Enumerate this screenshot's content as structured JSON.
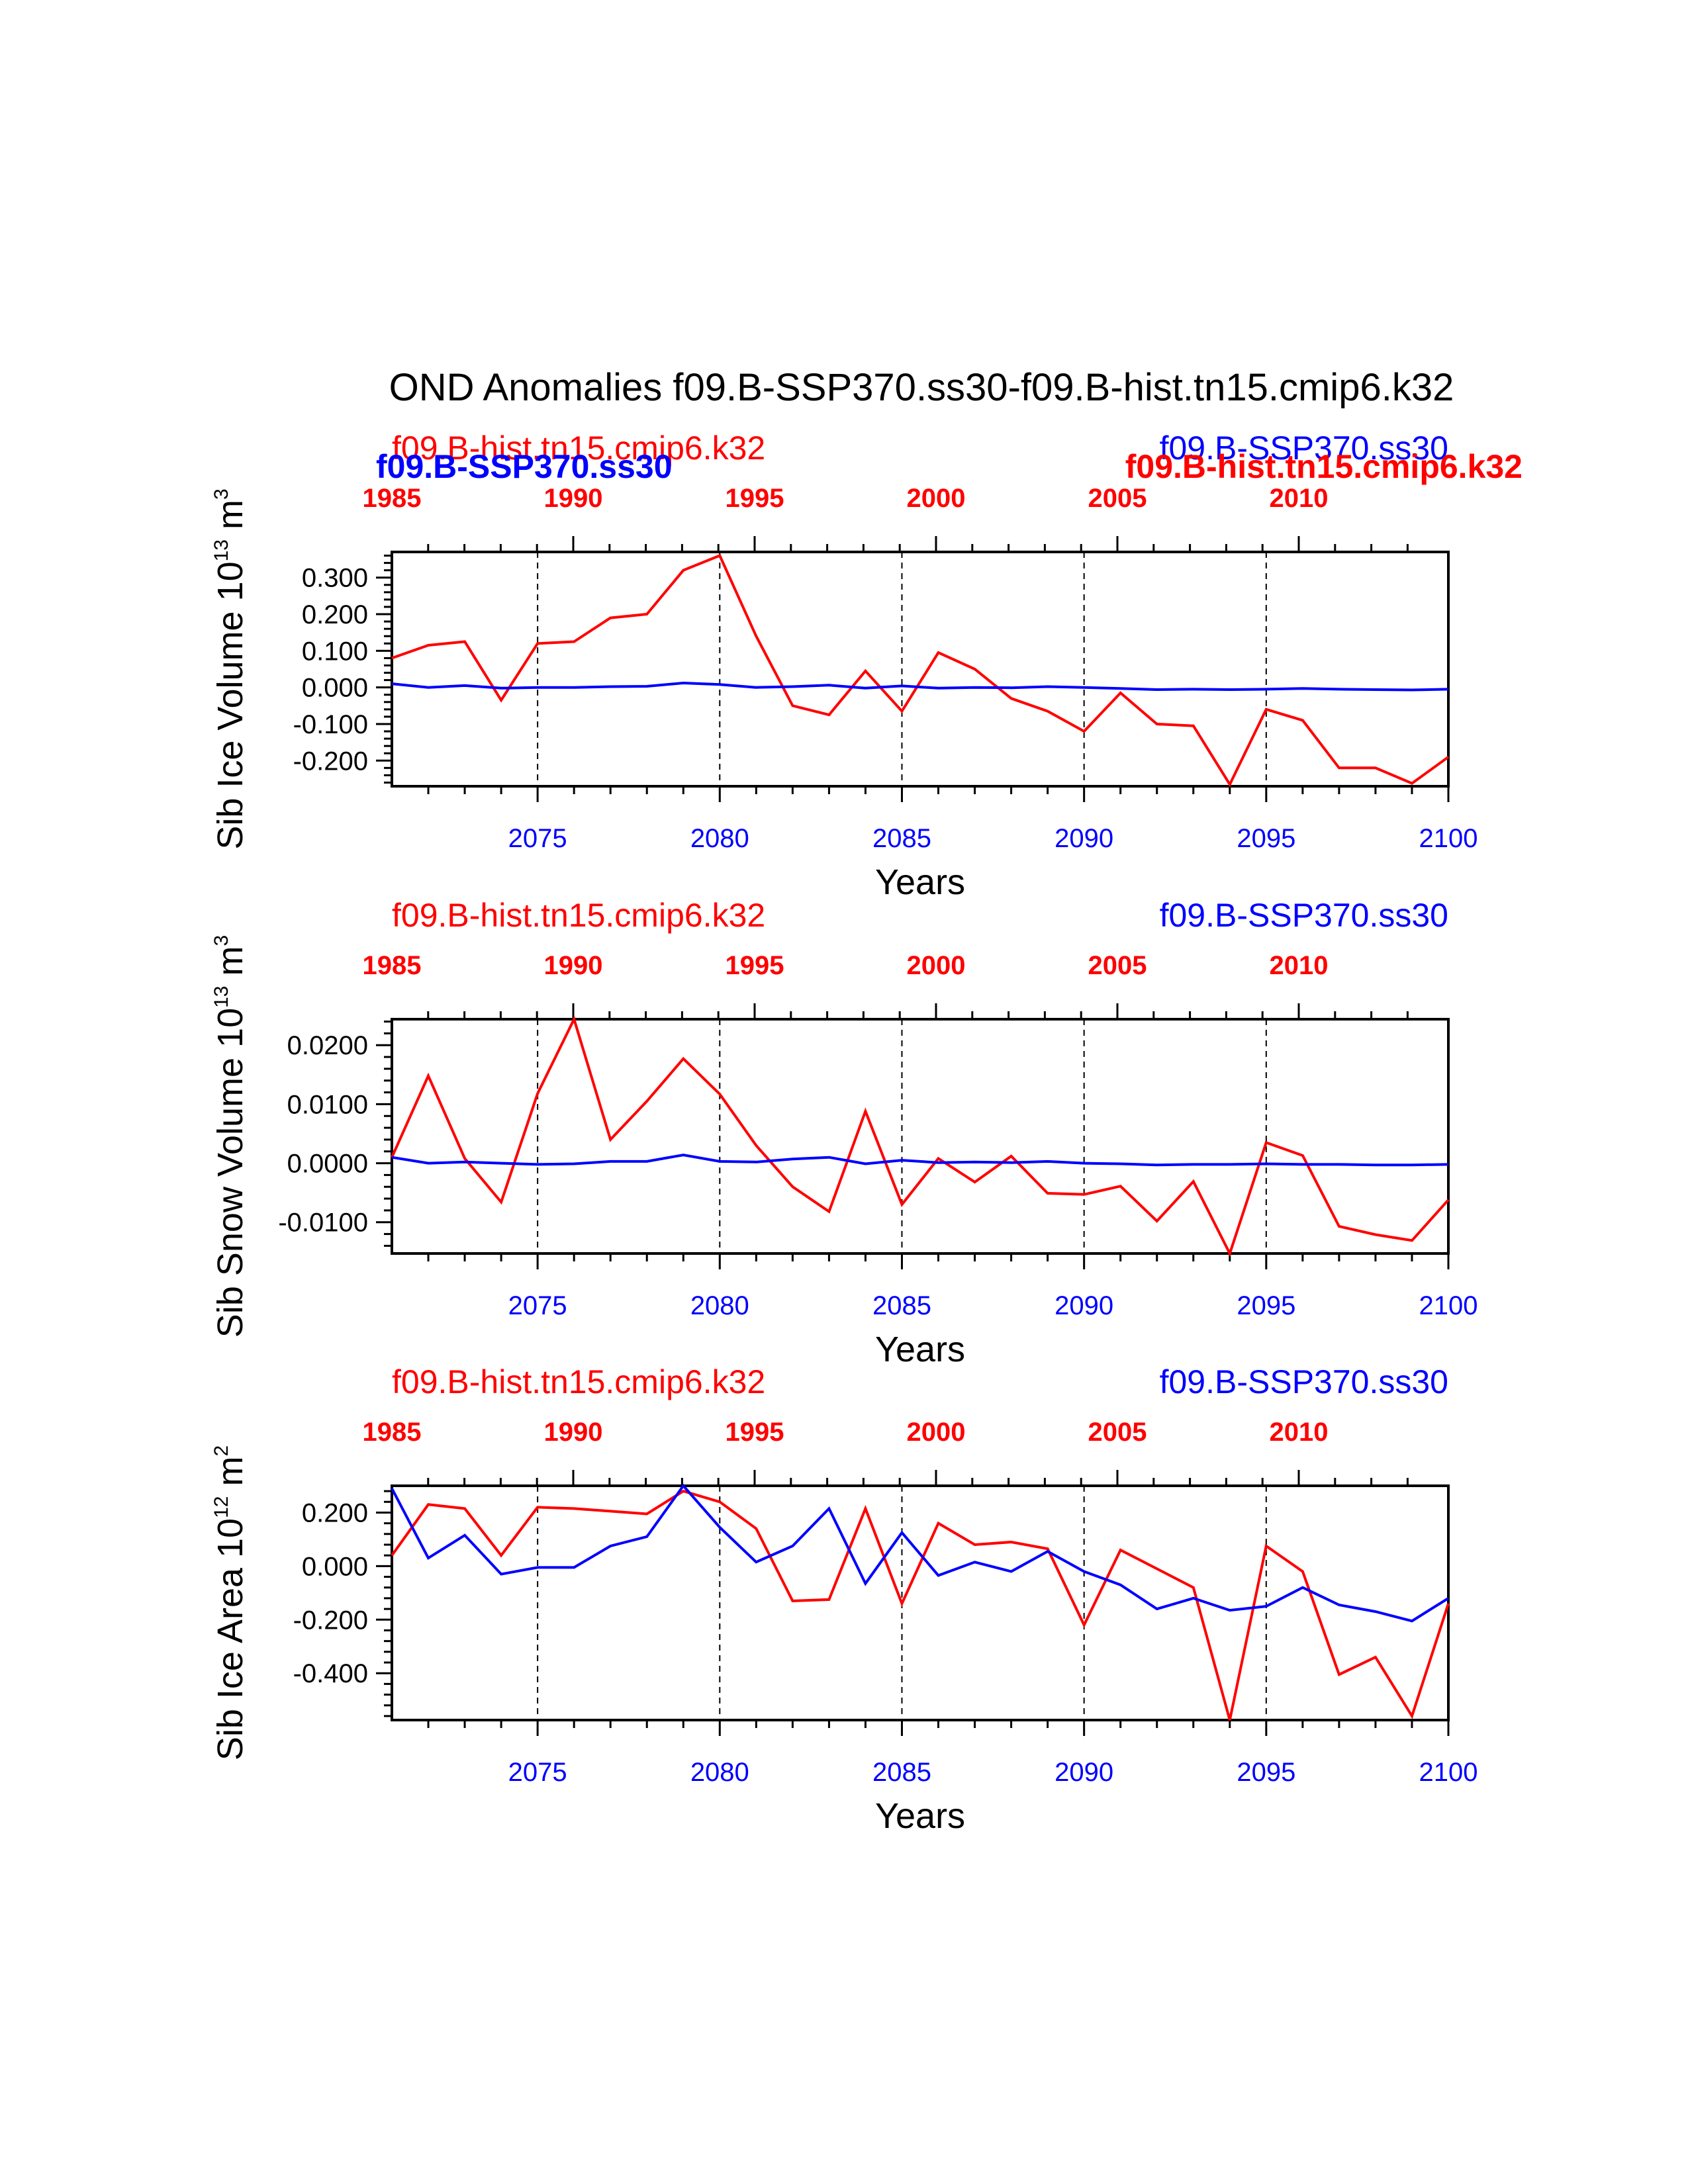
{
  "figure_title": "OND Anomalies f09.B-SSP370.ss30-f09.B-hist.tn15.cmip6.k32",
  "colors": {
    "hist": "#ff0000",
    "ssp": "#0000ff",
    "axis": "#000000"
  },
  "chart_data": [
    {
      "type": "line",
      "ylabel": "Sib Ice Volume 10",
      "ylabel_exp": "13",
      "ylabel_unit": " m",
      "ylabel_unit_exp": "3",
      "xlabel": "Years",
      "top_label_left": "f09.B-hist.tn15.cmip6.k32",
      "top_label_right": "f09.B-SSP370.ss30",
      "overlap_label_left": "f09.B-SSP370.ss30",
      "overlap_label_right": "f09.B-hist.tn15.cmip6.k32",
      "xlim": [
        2071,
        2100
      ],
      "ylim": [
        -0.27,
        0.37
      ],
      "x_ticks": [
        2075,
        2080,
        2085,
        2090,
        2095,
        2100
      ],
      "top_ticks": [
        1985,
        1990,
        1995,
        2000,
        2005,
        2010
      ],
      "y_ticks": [
        -0.2,
        -0.1,
        0.0,
        0.1,
        0.2,
        0.3
      ],
      "y_tick_labels": [
        "-0.200",
        "-0.100",
        "0.000",
        "0.100",
        "0.200",
        "0.300"
      ],
      "y_minor": 0.02,
      "grid_x": [
        2075,
        2080,
        2085,
        2090,
        2095
      ],
      "series": [
        {
          "name": "f09.B-hist.tn15.cmip6.k32",
          "color": "#ff0000",
          "x": [
            2071,
            2072,
            2073,
            2074,
            2075,
            2076,
            2077,
            2078,
            2079,
            2080,
            2081,
            2082,
            2083,
            2084,
            2085,
            2086,
            2087,
            2088,
            2089,
            2090,
            2091,
            2092,
            2093,
            2094,
            2095,
            2096,
            2097,
            2098,
            2099,
            2100
          ],
          "values": [
            0.08,
            0.115,
            0.125,
            -0.035,
            0.12,
            0.125,
            0.19,
            0.2,
            0.32,
            0.36,
            0.14,
            -0.05,
            -0.075,
            0.045,
            -0.065,
            0.095,
            0.05,
            -0.03,
            -0.065,
            -0.12,
            -0.015,
            -0.1,
            -0.105,
            -0.265,
            -0.06,
            -0.09,
            -0.22,
            -0.22,
            -0.262,
            -0.19
          ]
        },
        {
          "name": "f09.B-SSP370.ss30",
          "color": "#0000ff",
          "x": [
            2071,
            2072,
            2073,
            2074,
            2075,
            2076,
            2077,
            2078,
            2079,
            2080,
            2081,
            2082,
            2083,
            2084,
            2085,
            2086,
            2087,
            2088,
            2089,
            2090,
            2091,
            2092,
            2093,
            2094,
            2095,
            2096,
            2097,
            2098,
            2099,
            2100
          ],
          "values": [
            0.01,
            0.0,
            0.005,
            -0.002,
            0.0,
            0.0,
            0.002,
            0.003,
            0.012,
            0.008,
            0.0,
            0.002,
            0.006,
            -0.002,
            0.004,
            -0.002,
            0.0,
            -0.001,
            0.002,
            0.0,
            -0.003,
            -0.006,
            -0.005,
            -0.006,
            -0.005,
            -0.003,
            -0.005,
            -0.006,
            -0.007,
            -0.005
          ]
        }
      ]
    },
    {
      "type": "line",
      "ylabel": "Sib Snow Volume 10",
      "ylabel_exp": "13",
      "ylabel_unit": " m",
      "ylabel_unit_exp": "3",
      "xlabel": "Years",
      "top_label_left": "f09.B-hist.tn15.cmip6.k32",
      "top_label_right": "f09.B-SSP370.ss30",
      "xlim": [
        2071,
        2100
      ],
      "ylim": [
        -0.0153,
        0.0244
      ],
      "x_ticks": [
        2075,
        2080,
        2085,
        2090,
        2095,
        2100
      ],
      "top_ticks": [
        1985,
        1990,
        1995,
        2000,
        2005,
        2010
      ],
      "y_ticks": [
        -0.01,
        0.0,
        0.01,
        0.02
      ],
      "y_tick_labels": [
        "-0.0100",
        "0.0000",
        "0.0100",
        "0.0200"
      ],
      "y_minor": 0.002,
      "grid_x": [
        2075,
        2080,
        2085,
        2090,
        2095
      ],
      "series": [
        {
          "name": "f09.B-hist.tn15.cmip6.k32",
          "color": "#ff0000",
          "x": [
            2071,
            2072,
            2073,
            2074,
            2075,
            2076,
            2077,
            2078,
            2079,
            2080,
            2081,
            2082,
            2083,
            2084,
            2085,
            2086,
            2087,
            2088,
            2089,
            2090,
            2091,
            2092,
            2093,
            2094,
            2095,
            2096,
            2097,
            2098,
            2099,
            2100
          ],
          "values": [
            0.001,
            0.0148,
            0.0008,
            -0.0066,
            0.0118,
            0.0244,
            0.004,
            0.0105,
            0.0177,
            0.0117,
            0.003,
            -0.004,
            -0.0082,
            0.0088,
            -0.007,
            0.0008,
            -0.0032,
            0.0012,
            -0.0051,
            -0.0053,
            -0.0039,
            -0.0098,
            -0.0031,
            -0.0153,
            0.0035,
            0.0013,
            -0.0107,
            -0.0121,
            -0.0131,
            -0.0062
          ]
        },
        {
          "name": "f09.B-SSP370.ss30",
          "color": "#0000ff",
          "x": [
            2071,
            2072,
            2073,
            2074,
            2075,
            2076,
            2077,
            2078,
            2079,
            2080,
            2081,
            2082,
            2083,
            2084,
            2085,
            2086,
            2087,
            2088,
            2089,
            2090,
            2091,
            2092,
            2093,
            2094,
            2095,
            2096,
            2097,
            2098,
            2099,
            2100
          ],
          "values": [
            0.001,
            0.0,
            0.0002,
            0.0,
            -0.0002,
            -0.0001,
            0.0003,
            0.0003,
            0.0014,
            0.0003,
            0.0002,
            0.0007,
            0.001,
            -0.0001,
            0.0005,
            0.0001,
            0.0002,
            0.0001,
            0.0003,
            0.0,
            -0.0001,
            -0.0003,
            -0.0002,
            -0.0002,
            -0.0001,
            -0.0002,
            -0.0002,
            -0.0003,
            -0.0003,
            -0.0002
          ]
        }
      ]
    },
    {
      "type": "line",
      "ylabel": "Sib Ice Area 10",
      "ylabel_exp": "12",
      "ylabel_unit": " m",
      "ylabel_unit_exp": "2",
      "xlabel": "Years",
      "top_label_left": "f09.B-hist.tn15.cmip6.k32",
      "top_label_right": "f09.B-SSP370.ss30",
      "xlim": [
        2071,
        2100
      ],
      "ylim": [
        -0.575,
        0.3
      ],
      "x_ticks": [
        2075,
        2080,
        2085,
        2090,
        2095,
        2100
      ],
      "top_ticks": [
        1985,
        1990,
        1995,
        2000,
        2005,
        2010
      ],
      "y_ticks": [
        -0.4,
        -0.2,
        0.0,
        0.2
      ],
      "y_tick_labels": [
        "-0.400",
        "-0.200",
        "0.000",
        "0.200"
      ],
      "y_minor": 0.04,
      "grid_x": [
        2075,
        2080,
        2085,
        2090,
        2095
      ],
      "series": [
        {
          "name": "f09.B-hist.tn15.cmip6.k32",
          "color": "#ff0000",
          "x": [
            2071,
            2072,
            2073,
            2074,
            2075,
            2076,
            2077,
            2078,
            2079,
            2080,
            2081,
            2082,
            2083,
            2084,
            2085,
            2086,
            2087,
            2088,
            2089,
            2090,
            2091,
            2092,
            2093,
            2094,
            2095,
            2096,
            2097,
            2098,
            2099,
            2100
          ],
          "values": [
            0.04,
            0.23,
            0.215,
            0.04,
            0.22,
            0.215,
            0.205,
            0.195,
            0.28,
            0.24,
            0.14,
            -0.13,
            -0.125,
            0.215,
            -0.14,
            0.16,
            0.08,
            0.09,
            0.065,
            -0.22,
            0.06,
            -0.01,
            -0.08,
            -0.575,
            0.075,
            -0.02,
            -0.405,
            -0.34,
            -0.56,
            -0.14
          ]
        },
        {
          "name": "f09.B-SSP370.ss30",
          "color": "#0000ff",
          "x": [
            2071,
            2072,
            2073,
            2074,
            2075,
            2076,
            2077,
            2078,
            2079,
            2080,
            2081,
            2082,
            2083,
            2084,
            2085,
            2086,
            2087,
            2088,
            2089,
            2090,
            2091,
            2092,
            2093,
            2094,
            2095,
            2096,
            2097,
            2098,
            2099,
            2100
          ],
          "values": [
            0.29,
            0.03,
            0.115,
            -0.03,
            -0.005,
            -0.005,
            0.075,
            0.11,
            0.3,
            0.145,
            0.015,
            0.075,
            0.215,
            -0.065,
            0.125,
            -0.035,
            0.015,
            -0.02,
            0.055,
            -0.02,
            -0.07,
            -0.16,
            -0.12,
            -0.165,
            -0.15,
            -0.08,
            -0.145,
            -0.17,
            -0.205,
            -0.12
          ]
        }
      ]
    }
  ]
}
